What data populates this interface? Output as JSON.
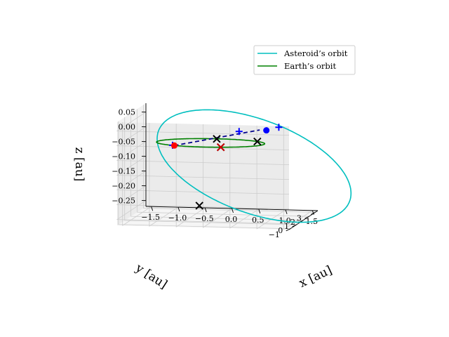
{
  "chart_data": {
    "type": "line",
    "projection": "3d",
    "xlabel": "x [au]",
    "ylabel": "y [au]",
    "zlabel": "z [au]",
    "x_ticks": [
      "−1.5",
      "−1.0",
      "−0.5",
      "0.0",
      "0.5",
      "1.0",
      "1.5"
    ],
    "y_ticks": [
      "−1",
      "0",
      "1",
      "2",
      "3"
    ],
    "z_ticks": [
      "0.05",
      "0.00",
      "−0.05",
      "−0.10",
      "−0.15",
      "−0.20",
      "−0.25"
    ],
    "xlim": [
      -1.6,
      1.6
    ],
    "ylim": [
      -1.2,
      3.4
    ],
    "zlim": [
      -0.27,
      0.08
    ],
    "grid": true,
    "legend": {
      "placement": "top-right",
      "entries": [
        {
          "label": "Asteroid’s orbit",
          "color": "#00bfbf"
        },
        {
          "label": "Earth’s orbit",
          "color": "#008000"
        }
      ]
    },
    "series": [
      {
        "name": "Asteroid’s orbit",
        "color": "#00bfbf",
        "orbit": {
          "semi_major_axis": 1.85,
          "eccentricity": 0.5,
          "perihelion_direction_deg": 157,
          "inclination_deg": 5.4,
          "ascending_node_deg": 30
        }
      },
      {
        "name": "Earth’s orbit",
        "color": "#008000",
        "orbit": {
          "semi_major_axis": 1.0,
          "eccentricity": 0.0,
          "inclination_deg": 0
        }
      }
    ],
    "transfer_path": {
      "color": "#00008b",
      "style": "dashed",
      "from": [
        -0.58,
        -0.82,
        0.0
      ],
      "to": [
        0.85,
        0.55,
        0.04
      ]
    },
    "markers": [
      {
        "type": "x",
        "color": "#000000",
        "position": [
          0.0,
          0.98,
          0.0
        ]
      },
      {
        "type": "x",
        "color": "#000000",
        "position": [
          0.8,
          0.6,
          0.0
        ]
      },
      {
        "type": "x",
        "color": "#000000",
        "position": [
          0.3,
          -0.95,
          0.0
        ]
      },
      {
        "type": "x",
        "color": "#000000",
        "position": [
          -0.5,
          2.5,
          -0.25
        ]
      },
      {
        "type": "x",
        "color": "#cc0000",
        "position": [
          0.3,
          -0.95,
          0.0
        ]
      },
      {
        "type": "plus",
        "color": "#0000ff",
        "position": [
          1.2,
          0.6,
          0.05
        ]
      },
      {
        "type": "plus",
        "color": "#0000ff",
        "position": [
          0.6,
          -0.6,
          0.05
        ]
      },
      {
        "type": "plus",
        "color": "#0000ff",
        "position": [
          -0.62,
          -0.76,
          0.0
        ]
      },
      {
        "type": "dot",
        "color": "#0000ff",
        "position": [
          0.98,
          0.5,
          0.04
        ]
      },
      {
        "type": "dot",
        "color": "#ff0000",
        "position": [
          -0.58,
          -0.82,
          0.0
        ]
      }
    ]
  }
}
